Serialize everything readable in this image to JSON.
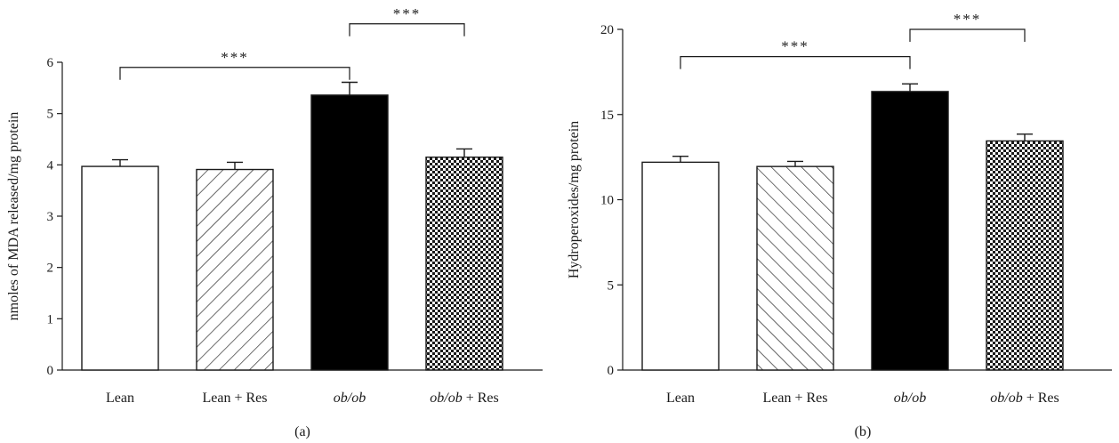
{
  "chart_data": [
    {
      "type": "bar",
      "panel_label": "(a)",
      "ylabel": "nmoles of MDA released/mg protein",
      "ylim": [
        0,
        6
      ],
      "yticks": [
        0,
        1,
        2,
        3,
        4,
        5,
        6
      ],
      "categories": [
        {
          "name": "Lean",
          "italic": "",
          "suffix": ""
        },
        {
          "name": "Lean + Res",
          "italic": "",
          "suffix": ""
        },
        {
          "name": "ob/ob",
          "italic": "ob/ob",
          "suffix": ""
        },
        {
          "name": "ob/ob + Res",
          "italic": "ob/ob",
          "suffix": " + Res"
        }
      ],
      "values": [
        3.97,
        3.91,
        5.36,
        4.15
      ],
      "errors": [
        0.13,
        0.14,
        0.25,
        0.16
      ],
      "fills": [
        "white",
        "hatch-forward",
        "solid-black",
        "checker"
      ],
      "significance": [
        {
          "from": 0,
          "to": 2,
          "label": "***",
          "y": 5.9
        },
        {
          "from": 2,
          "to": 3,
          "label": "***",
          "y": 6.75
        }
      ]
    },
    {
      "type": "bar",
      "panel_label": "(b)",
      "ylabel": "Hydroperoxides/mg protein",
      "ylim": [
        0,
        20
      ],
      "yticks": [
        0,
        5,
        10,
        15,
        20
      ],
      "categories": [
        {
          "name": "Lean",
          "italic": "",
          "suffix": ""
        },
        {
          "name": "Lean + Res",
          "italic": "",
          "suffix": ""
        },
        {
          "name": "ob/ob",
          "italic": "ob/ob",
          "suffix": ""
        },
        {
          "name": "ob/ob + Res",
          "italic": "ob/ob",
          "suffix": " + Res"
        }
      ],
      "values": [
        12.2,
        11.95,
        16.35,
        13.45
      ],
      "errors": [
        0.35,
        0.3,
        0.45,
        0.4
      ],
      "fills": [
        "white",
        "hatch-backward",
        "solid-black",
        "checker"
      ],
      "significance": [
        {
          "from": 0,
          "to": 2,
          "label": "***",
          "y": 18.4
        },
        {
          "from": 2,
          "to": 3,
          "label": "***",
          "y": 20.0
        }
      ]
    }
  ]
}
